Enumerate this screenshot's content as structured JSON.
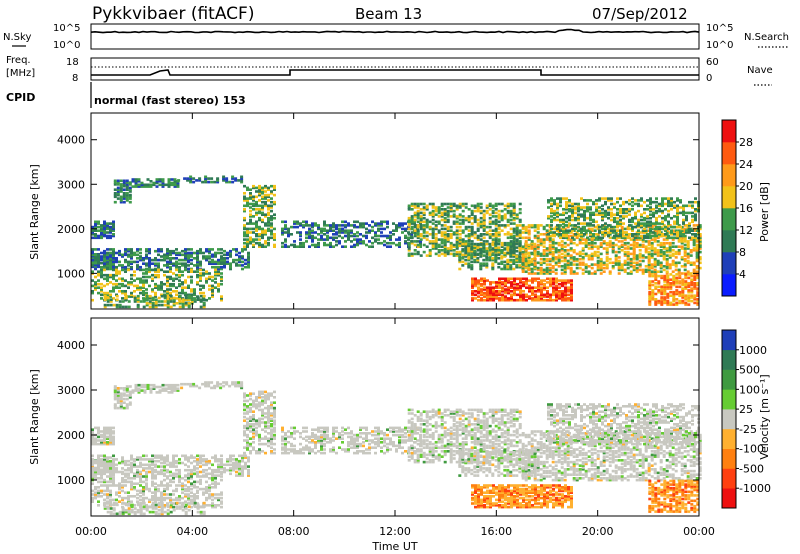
{
  "header": {
    "station": "Pykkvibaer (fitACF)",
    "beam": "Beam 13",
    "date": "07/Sep/2012"
  },
  "top_panels": {
    "nsky_label": "N.Sky",
    "nsearch_label": "N.Search",
    "nsky_ticks": [
      "10^5",
      "10^0"
    ],
    "nsearch_ticks": [
      "10^5",
      "10^0"
    ],
    "freq_label_1": "Freq.",
    "freq_label_2": "[MHz]",
    "freq_ticks": [
      "18",
      "8"
    ],
    "nave_label": "Nave",
    "nave_ticks": [
      "60",
      "0"
    ],
    "cpid_label": "CPID",
    "cpid_text": "normal (fast stereo) 153"
  },
  "chart_data": [
    {
      "type": "heatmap",
      "name": "power-panel",
      "ylabel": "Slant Range [km]",
      "y_ticks": [
        "1000",
        "2000",
        "3000",
        "4000"
      ],
      "ylim": [
        200,
        4600
      ],
      "colorbar_label": "Power [dB]",
      "colorbar_ticks": [
        "4",
        "8",
        "12",
        "16",
        "20",
        "24",
        "28"
      ],
      "colorbar_colors": [
        "#0a1cff",
        "#1f3fb8",
        "#2f7a55",
        "#3e9a4a",
        "#f2c21a",
        "#ff9a1a",
        "#ff5a10",
        "#ee1010"
      ]
    },
    {
      "type": "heatmap",
      "name": "velocity-panel",
      "ylabel": "Slant Range [km]",
      "y_ticks": [
        "1000",
        "2000",
        "3000",
        "4000"
      ],
      "ylim": [
        200,
        4600
      ],
      "colorbar_label": "Velocity [m s⁻¹]",
      "colorbar_ticks": [
        "1000",
        "500",
        "100",
        "25",
        "-25",
        "-100",
        "-500",
        "-1000"
      ],
      "colorbar_colors": [
        "#1f3fb8",
        "#2f7a55",
        "#3f9a40",
        "#66cc33",
        "#c8c8c0",
        "#ffb030",
        "#ff8010",
        "#ff4010",
        "#ee1010"
      ]
    }
  ],
  "x_axis": {
    "label": "Time UT",
    "ticks": [
      "00:00",
      "04:00",
      "08:00",
      "12:00",
      "16:00",
      "20:00",
      "00:00"
    ]
  }
}
